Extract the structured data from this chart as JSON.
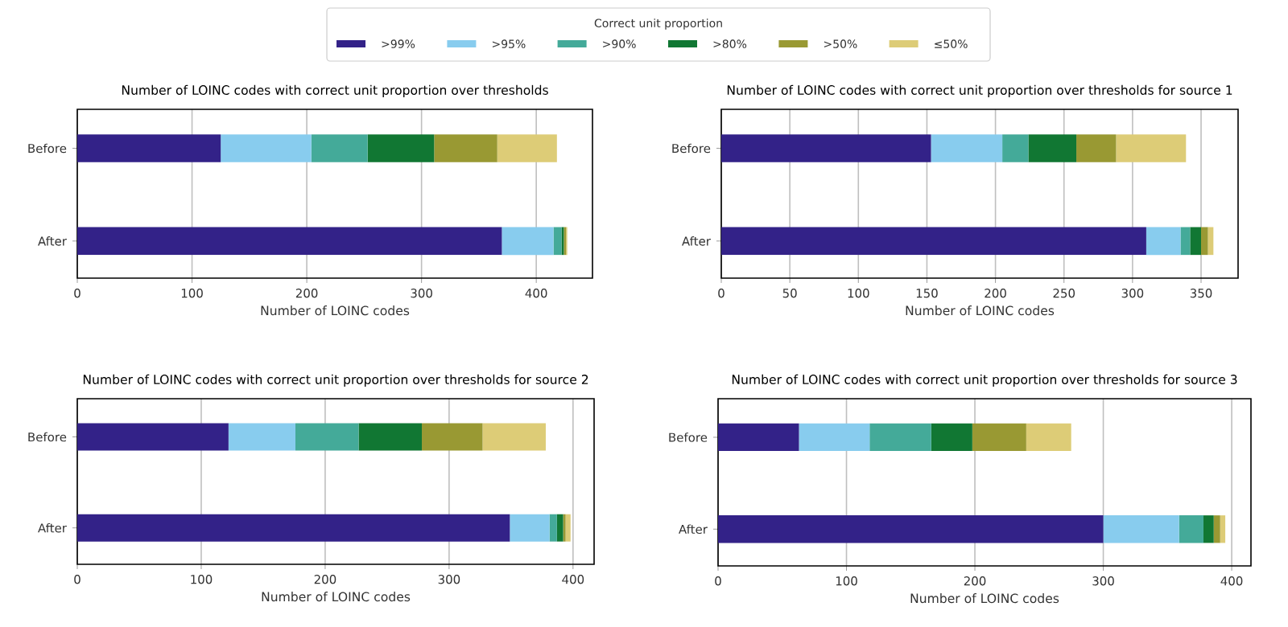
{
  "chart_data": [
    {
      "type": "bar",
      "orientation": "horizontal",
      "stacked": true,
      "title": "Number of LOINC codes with correct unit proportion over thresholds",
      "xlabel": "Number of LOINC codes",
      "categories": [
        "Before",
        "After"
      ],
      "xlim": [
        0,
        449
      ],
      "xticks": [
        0,
        100,
        200,
        300,
        400
      ],
      "grid": "x",
      "legend": "top",
      "legend_title": "Correct unit proportion",
      "series": [
        {
          "name": ">99%",
          "color": "#332288",
          "values": [
            125,
            370
          ]
        },
        {
          "name": ">95%",
          "color": "#88ccee",
          "values": [
            79,
            45
          ]
        },
        {
          "name": ">90%",
          "color": "#44aa99",
          "values": [
            49,
            7
          ]
        },
        {
          "name": ">80%",
          "color": "#117733",
          "values": [
            58,
            2
          ]
        },
        {
          "name": ">50%",
          "color": "#999933",
          "values": [
            55,
            2
          ]
        },
        {
          "name": "≤50%",
          "color": "#ddcc77",
          "values": [
            52,
            1
          ]
        }
      ]
    },
    {
      "type": "bar",
      "orientation": "horizontal",
      "stacked": true,
      "title": "Number of LOINC codes with correct unit proportion over thresholds for source 1",
      "xlabel": "Number of LOINC codes",
      "categories": [
        "Before",
        "After"
      ],
      "xlim": [
        0,
        377
      ],
      "xticks": [
        0,
        50,
        100,
        150,
        200,
        250,
        300,
        350
      ],
      "grid": "x",
      "series": [
        {
          "color": "#332288",
          "values": [
            153,
            310
          ]
        },
        {
          "color": "#88ccee",
          "values": [
            52,
            25
          ]
        },
        {
          "color": "#44aa99",
          "values": [
            19,
            7
          ]
        },
        {
          "color": "#117733",
          "values": [
            35,
            8
          ]
        },
        {
          "color": "#999933",
          "values": [
            29,
            5
          ]
        },
        {
          "color": "#ddcc77",
          "values": [
            51,
            4
          ]
        }
      ]
    },
    {
      "type": "bar",
      "orientation": "horizontal",
      "stacked": true,
      "title": "Number of LOINC codes with correct unit proportion over thresholds for source 2",
      "xlabel": "Number of LOINC codes",
      "categories": [
        "Before",
        "After"
      ],
      "xlim": [
        0,
        417
      ],
      "xticks": [
        0,
        100,
        200,
        300,
        400
      ],
      "grid": "x",
      "series": [
        {
          "color": "#332288",
          "values": [
            122,
            349
          ]
        },
        {
          "color": "#88ccee",
          "values": [
            54,
            32
          ]
        },
        {
          "color": "#44aa99",
          "values": [
            51,
            6
          ]
        },
        {
          "color": "#117733",
          "values": [
            51,
            5
          ]
        },
        {
          "color": "#999933",
          "values": [
            49,
            2
          ]
        },
        {
          "color": "#ddcc77",
          "values": [
            51,
            4
          ]
        }
      ]
    },
    {
      "type": "bar",
      "orientation": "horizontal",
      "stacked": true,
      "title": "Number of LOINC codes with correct unit proportion over thresholds for source 3",
      "xlabel": "Number of LOINC codes",
      "categories": [
        "Before",
        "After"
      ],
      "xlim": [
        0,
        415
      ],
      "xticks": [
        0,
        100,
        200,
        300,
        400
      ],
      "grid": "x",
      "series": [
        {
          "color": "#332288",
          "values": [
            63,
            300
          ]
        },
        {
          "color": "#88ccee",
          "values": [
            55,
            59
          ]
        },
        {
          "color": "#44aa99",
          "values": [
            48,
            19
          ]
        },
        {
          "color": "#117733",
          "values": [
            32,
            8
          ]
        },
        {
          "color": "#999933",
          "values": [
            42,
            5
          ]
        },
        {
          "color": "#ddcc77",
          "values": [
            35,
            4
          ]
        }
      ]
    }
  ]
}
